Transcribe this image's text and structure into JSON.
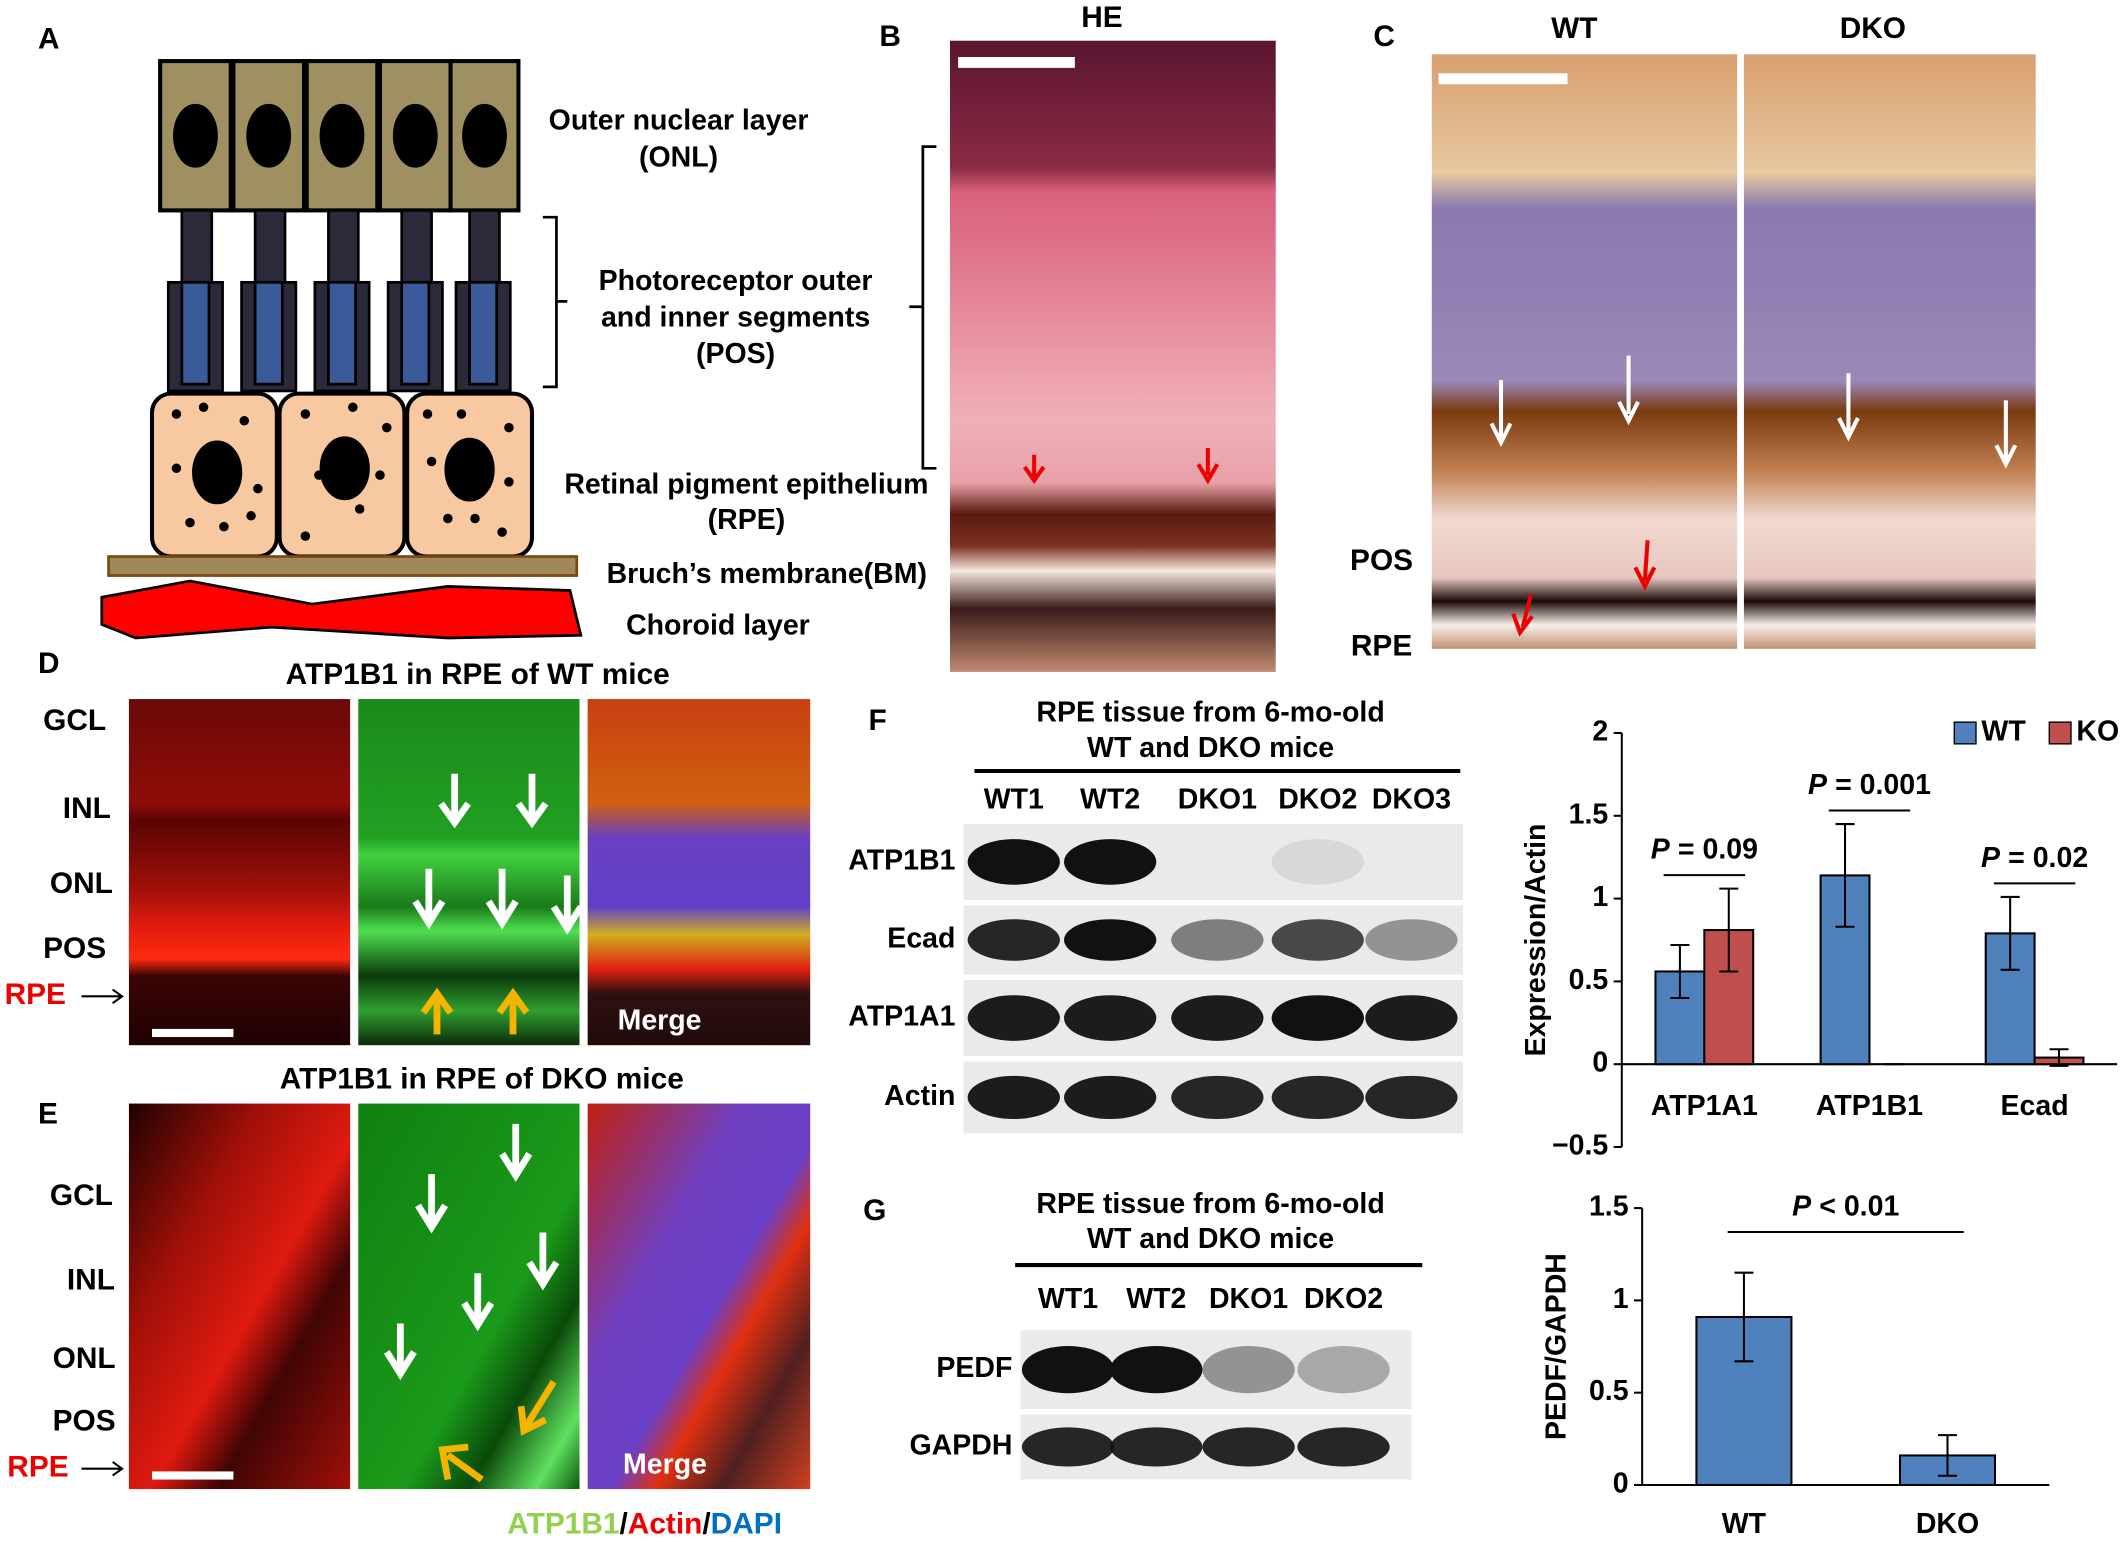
{
  "panel_a": {
    "label": "A",
    "onl": [
      "Outer nuclear layer",
      "(ONL)"
    ],
    "pos": [
      "Photoreceptor outer",
      "and inner segments",
      "(POS)"
    ],
    "rpe": [
      "Retinal pigment epithelium",
      "(RPE)"
    ],
    "bm": "Bruch’s membrane(BM)",
    "choroid": "Choroid layer"
  },
  "panel_b": {
    "label": "B",
    "title": "HE"
  },
  "panel_c": {
    "label": "C",
    "columns": [
      "WT",
      "DKO"
    ],
    "layers": [
      "POS",
      "RPE"
    ]
  },
  "panel_d": {
    "label": "D",
    "title": "ATP1B1 in RPE of WT mice",
    "layers": [
      "GCL",
      "INL",
      "ONL",
      "POS",
      "RPE"
    ],
    "merge": "Merge"
  },
  "panel_e": {
    "label": "E",
    "title": "ATP1B1 in RPE of DKO mice",
    "layers": [
      "GCL",
      "INL",
      "ONL",
      "POS",
      "RPE"
    ],
    "merge": "Merge",
    "stain_legend": [
      "ATP1B1",
      "/",
      "Actin",
      "/",
      "DAPI"
    ]
  },
  "panel_f": {
    "label": "F",
    "blot_title": [
      "RPE tissue from 6-mo-old",
      "WT and DKO mice"
    ],
    "lanes": [
      "WT1",
      "WT2",
      "DKO1",
      "DKO2",
      "DKO3"
    ],
    "rows": [
      "ATP1B1",
      "Ecad",
      "ATP1A1",
      "Actin"
    ],
    "chart": {
      "type": "bar",
      "ylabel": "Expression/Actin",
      "categories": [
        "ATP1A1",
        "ATP1B1",
        "Ecad"
      ],
      "series": [
        {
          "name": "WT",
          "color": "#4f81bd",
          "values": [
            0.56,
            1.14,
            0.79
          ],
          "errors": [
            0.16,
            0.31,
            0.22
          ]
        },
        {
          "name": "KO",
          "color": "#c0504d",
          "values": [
            0.81,
            0,
            0.04
          ],
          "errors": [
            0.25,
            0,
            0.05
          ]
        }
      ],
      "ylim": [
        -0.5,
        2
      ],
      "yticks": [
        {
          "value": -0.5,
          "label": "−0.5"
        },
        0,
        0.5,
        1,
        1.5,
        2
      ],
      "legend": "top-right",
      "annotations": [
        {
          "italic": "P",
          "text": "= 0.09"
        },
        {
          "italic": "P",
          "text": "= 0.001"
        },
        {
          "italic": "P",
          "text": "= 0.02"
        }
      ]
    }
  },
  "panel_g": {
    "label": "G",
    "blot_title": [
      "RPE tissue from 6-mo-old",
      "WT and DKO mice"
    ],
    "lanes": [
      "WT1",
      "WT2",
      "DKO1",
      "DKO2"
    ],
    "rows": [
      "PEDF",
      "GAPDH"
    ],
    "chart": {
      "type": "bar",
      "ylabel": "PEDF/GAPDH",
      "categories": [
        "WT",
        "DKO"
      ],
      "color": "#4f81bd",
      "values": [
        0.91,
        0.16
      ],
      "errors": [
        0.24,
        0.11
      ],
      "ylim": [
        0,
        1.5
      ],
      "yticks": [
        0,
        0.5,
        1,
        1.5
      ],
      "annotations": [
        {
          "italic": "P",
          "text": "< 0.01"
        }
      ]
    }
  }
}
